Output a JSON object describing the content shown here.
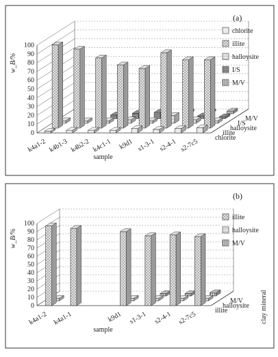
{
  "chart_data": [
    {
      "panel": "(a)",
      "type": "bar",
      "ylabel": "w_B/%",
      "xlabel": "sample",
      "yticks": [
        "0",
        "10",
        "20",
        "30",
        "40",
        "50",
        "60",
        "70",
        "80",
        "90",
        "100"
      ],
      "ylim": [
        0,
        100
      ],
      "categories": [
        "k4a1-2",
        "k4b1-3",
        "k4b2-2",
        "k4c1-1",
        "k9d1",
        "s1-3-1",
        "s2-4-1",
        "s2-7c5"
      ],
      "depth_labels": [
        "chlorite",
        "illite",
        "halloysite",
        "I/S",
        "M/V"
      ],
      "legend": [
        "chlorite",
        "illite",
        "halloysite",
        "I/S",
        "M/V"
      ],
      "legend_colors": {
        "chlorite": "#dcdcdc",
        "illite": "#c8c8c8",
        "halloysite": "#d0d0d0",
        "I/S": "#8a8a8a",
        "M/V": "#b4b4b4"
      },
      "series": [
        {
          "name": "chlorite",
          "values": [
            2,
            3,
            3,
            3,
            5,
            4,
            5,
            6
          ]
        },
        {
          "name": "illite",
          "values": [
            95,
            90,
            80,
            72,
            68,
            86,
            78,
            78
          ]
        },
        {
          "name": "halloysite",
          "values": [
            3,
            3,
            3,
            4,
            3,
            9,
            4,
            3
          ]
        },
        {
          "name": "I/S",
          "values": [
            0,
            0,
            4,
            6,
            7,
            0,
            3,
            2
          ]
        },
        {
          "name": "M/V",
          "values": [
            0,
            0,
            0,
            0,
            0,
            2,
            2,
            3
          ]
        }
      ]
    },
    {
      "panel": "(b)",
      "type": "bar",
      "ylabel": "w_B/%",
      "xlabel": "sample",
      "yticks": [
        "0",
        "10",
        "20",
        "30",
        "40",
        "50",
        "60",
        "70",
        "80",
        "90",
        "100"
      ],
      "ylim": [
        0,
        100
      ],
      "categories": [
        "k4a1-2",
        "k4a1-1",
        "",
        "k9d1",
        "s1-3-1",
        "s2-4-1",
        "s2-7c5"
      ],
      "depth_labels": [
        "illite",
        "halloysite",
        "M/V"
      ],
      "depth_axis_title": "clay mineral",
      "legend": [
        "illite",
        "halloysite",
        "M/V"
      ],
      "legend_colors": {
        "illite": "#c8c8c8",
        "halloysite": "#d0d0d0",
        "M/V": "#b4b4b4"
      },
      "series": [
        {
          "name": "illite",
          "values": [
            97,
            94,
            0,
            90,
            85,
            86,
            84
          ]
        },
        {
          "name": "halloysite",
          "values": [
            3,
            0,
            0,
            3,
            3,
            3,
            3
          ]
        },
        {
          "name": "M/V",
          "values": [
            0,
            0,
            0,
            0,
            3,
            3,
            4
          ]
        }
      ]
    }
  ]
}
